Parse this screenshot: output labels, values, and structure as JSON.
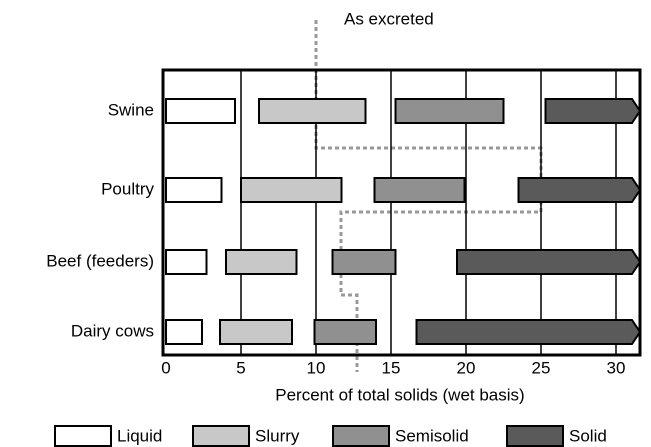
{
  "chart_data": {
    "type": "range_bar",
    "categories": [
      "Swine",
      "Poultry",
      "Beef (feeders)",
      "Dairy cows"
    ],
    "xlabel": "Percent of total solids (wet basis)",
    "xlim": [
      0,
      31.6
    ],
    "xticks": [
      0,
      5,
      10,
      15,
      20,
      25,
      30
    ],
    "grid": true,
    "annotation": "As excreted",
    "series": [
      {
        "name": "Liquid",
        "color": "#ffffff",
        "values": [
          [
            0,
            4.6
          ],
          [
            0,
            3.7
          ],
          [
            0,
            2.7
          ],
          [
            0,
            2.4
          ]
        ]
      },
      {
        "name": "Slurry",
        "color": "#c8c8c8",
        "values": [
          [
            6.2,
            13.3
          ],
          [
            5,
            11.7
          ],
          [
            4,
            8.7
          ],
          [
            3.6,
            8.4
          ]
        ]
      },
      {
        "name": "Semisolid",
        "color": "#909090",
        "values": [
          [
            15.3,
            22.5
          ],
          [
            13.9,
            19.9
          ],
          [
            11.1,
            15.3
          ],
          [
            9.9,
            14
          ]
        ]
      },
      {
        "name": "Solid",
        "color": "#5a5a5a",
        "arrow": true,
        "values": [
          [
            25.3,
            31.6
          ],
          [
            23.5,
            31.6
          ],
          [
            19.4,
            31.6
          ],
          [
            16.7,
            31.6
          ]
        ]
      }
    ]
  }
}
